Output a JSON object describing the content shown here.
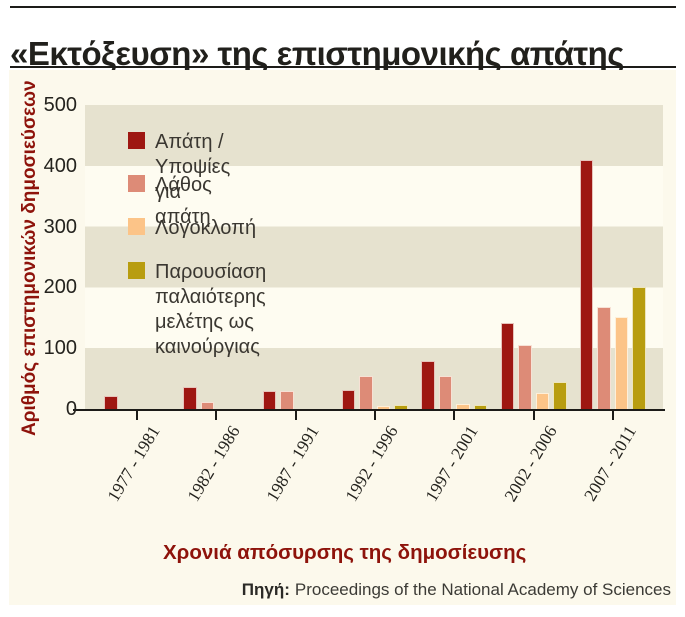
{
  "title": "«Εκτόξευση» της επιστημονικής απάτης",
  "chart_data": {
    "type": "bar",
    "title": "«Εκτόξευση» της επιστημονικής απάτης",
    "categories": [
      "1977 - 1981",
      "1982 - 1986",
      "1987 - 1991",
      "1992 - 1996",
      "1997 - 2001",
      "2002 - 2006",
      "2007 - 2011"
    ],
    "series": [
      {
        "name": "Απάτη / Υποψίες για απάτη",
        "color": "#9e1712",
        "values": [
          21,
          36,
          30,
          31,
          79,
          142,
          410
        ]
      },
      {
        "name": "Λάθος",
        "color": "#dd8b77",
        "values": [
          0,
          12,
          30,
          54,
          54,
          106,
          167
        ]
      },
      {
        "name": "Λογοκλοπή",
        "color": "#fcc488",
        "values": [
          0,
          0,
          0,
          5,
          8,
          27,
          152
        ]
      },
      {
        "name": "Παρουσίαση παλαιότερης μελέτης ως καινούργιας",
        "color": "#b89d10",
        "values": [
          0,
          0,
          0,
          6,
          6,
          45,
          200
        ]
      }
    ],
    "xlabel": "Χρονιά απόσυρσης της δημοσίευσης",
    "ylabel": "Αριθμός επιστημονικών δημοσιεύσεων",
    "ylim": [
      0,
      500
    ],
    "yticks": [
      0,
      100,
      200,
      300,
      400,
      500
    ],
    "legend_position": "inside-top-left",
    "grid": false,
    "band_colors": {
      "even": "#e6e2cf",
      "odd": "#fefcf1"
    }
  },
  "source": {
    "label": "Πηγή:",
    "text": "Proceedings of the National Academy of Sciences"
  },
  "colors": {
    "accent_red": "#8e130b",
    "title_text": "#21201c",
    "panel_background": "#fcf9ec",
    "axis": "#1c1b18"
  }
}
